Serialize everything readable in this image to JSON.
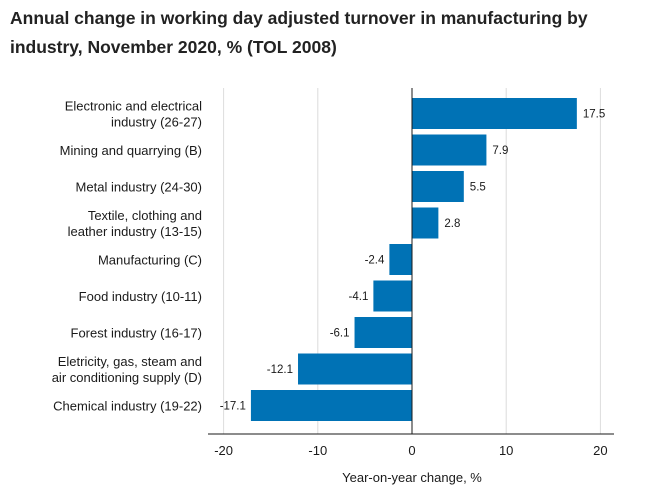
{
  "chart_data": {
    "type": "bar",
    "orientation": "horizontal",
    "title": "Annual change in working day adjusted turnover in manufacturing by industry, November 2020, % (TOL 2008)",
    "xlabel": "Year-on-year change, %",
    "ylabel": "",
    "xlim": [
      -22,
      22
    ],
    "xticks": [
      "-20",
      "-10",
      "0",
      "10",
      "20"
    ],
    "grid": "vertical",
    "bar_color": "#0072B5",
    "categories": [
      [
        "Electronic and electrical",
        "industry (26-27)"
      ],
      [
        "Mining and quarrying (B)"
      ],
      [
        "Metal industry (24-30)"
      ],
      [
        "Textile, clothing and",
        "leather industry (13-15)"
      ],
      [
        "Manufacturing (C)"
      ],
      [
        "Food industry (10-11)"
      ],
      [
        "Forest industry (16-17)"
      ],
      [
        "Eletricity, gas, steam and",
        "air conditioning supply (D)"
      ],
      [
        "Chemical industry (19-22)"
      ]
    ],
    "values": [
      17.5,
      7.9,
      5.5,
      2.8,
      -2.4,
      -4.1,
      -6.1,
      -12.1,
      -17.1
    ],
    "value_labels": [
      "17.5",
      "7.9",
      "5.5",
      "2.8",
      "-2.4",
      "-4.1",
      "-6.1",
      "-12.1",
      "-17.1"
    ]
  }
}
